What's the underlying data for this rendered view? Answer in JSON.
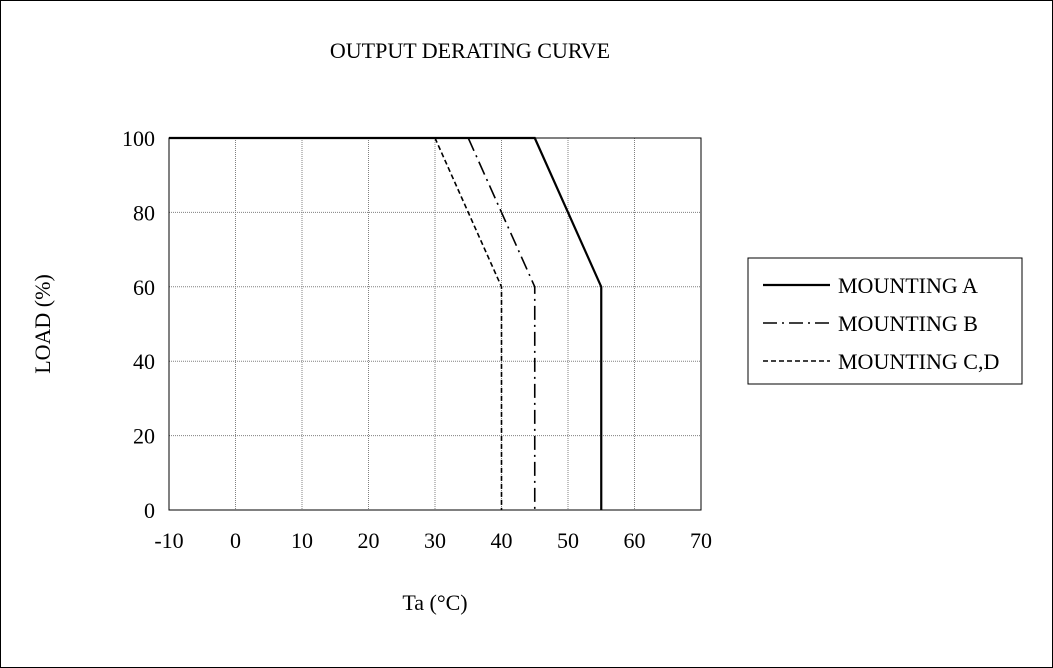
{
  "chart_data": {
    "type": "line",
    "title": "OUTPUT DERATING CURVE",
    "xlabel": "Ta (°C)",
    "ylabel": "LOAD (%)",
    "xlim": [
      -10,
      70
    ],
    "ylim": [
      0,
      100
    ],
    "x_ticks": [
      -10,
      0,
      10,
      20,
      30,
      40,
      50,
      60,
      70
    ],
    "y_ticks": [
      0,
      20,
      40,
      60,
      80,
      100
    ],
    "x_tick_labels": [
      "-10",
      "0",
      "10",
      "20",
      "30",
      "40",
      "50",
      "60",
      "70"
    ],
    "y_tick_labels": [
      "0",
      "20",
      "40",
      "60",
      "80",
      "100"
    ],
    "grid": true,
    "legend_position": "right",
    "series": [
      {
        "name": "MOUNTING A",
        "style": "solid",
        "color": "#000000",
        "points": [
          [
            -10,
            100
          ],
          [
            45,
            100
          ],
          [
            55,
            60
          ],
          [
            55,
            0
          ]
        ]
      },
      {
        "name": "MOUNTING B",
        "style": "dash-dot",
        "color": "#000000",
        "points": [
          [
            35,
            100
          ],
          [
            45,
            60
          ],
          [
            45,
            0
          ]
        ]
      },
      {
        "name": "MOUNTING C,D",
        "style": "dashed",
        "color": "#000000",
        "points": [
          [
            30,
            100
          ],
          [
            40,
            60
          ],
          [
            40,
            0
          ]
        ]
      }
    ]
  }
}
